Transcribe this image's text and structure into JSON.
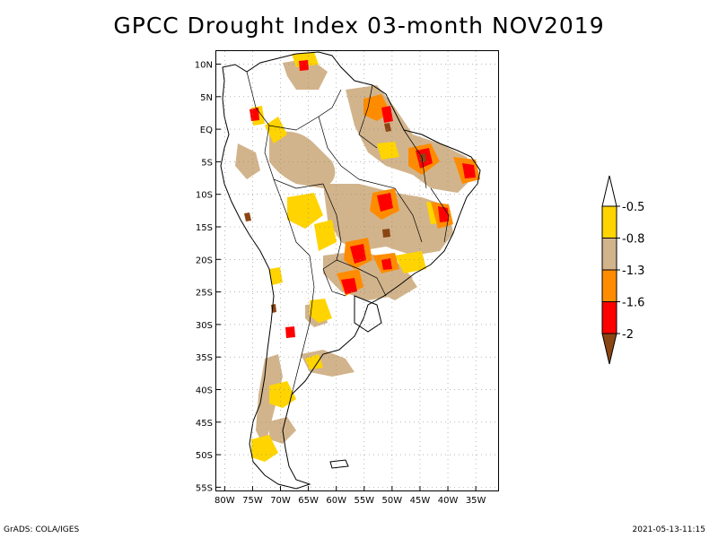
{
  "title": "GPCC Drought Index 03-month NOV2019",
  "footer": {
    "left": "GrADS: COLA/IGES",
    "right": "2021-05-13-11:15"
  },
  "axes": {
    "lat_labels": [
      "10N",
      "5N",
      "EQ",
      "5S",
      "10S",
      "15S",
      "20S",
      "25S",
      "30S",
      "35S",
      "40S",
      "45S",
      "50S",
      "55S"
    ],
    "lat_values": [
      10,
      5,
      0,
      -5,
      -10,
      -15,
      -20,
      -25,
      -30,
      -35,
      -40,
      -45,
      -50,
      -55
    ],
    "lon_labels": [
      "80W",
      "75W",
      "70W",
      "65W",
      "60W",
      "55W",
      "50W",
      "45W",
      "40W",
      "35W"
    ],
    "lon_values": [
      -80,
      -75,
      -70,
      -65,
      -60,
      -55,
      -50,
      -45,
      -40,
      -35
    ],
    "lon_range": [
      -81.5,
      -31
    ],
    "lat_range": [
      -55.5,
      12
    ],
    "grid": "dotted"
  },
  "legend": {
    "levels": [
      {
        "label": "-0.5",
        "color": "#ffd400"
      },
      {
        "label": "-0.8",
        "color": "#d2b48c"
      },
      {
        "label": "-1.3",
        "color": "#ff8c00"
      },
      {
        "label": "-1.6",
        "color": "#ff0000"
      },
      {
        "label": "-2",
        "color": "#8b4513"
      }
    ],
    "top_color": "#ffffff",
    "bottom_color": "#8b4513"
  },
  "colors": {
    "mild": "#ffd400",
    "moderate": "#d2b48c",
    "severe": "#ff8c00",
    "extreme": "#ff0000",
    "exceptional": "#8b4513",
    "land": "#ffffff",
    "border": "#000000"
  }
}
